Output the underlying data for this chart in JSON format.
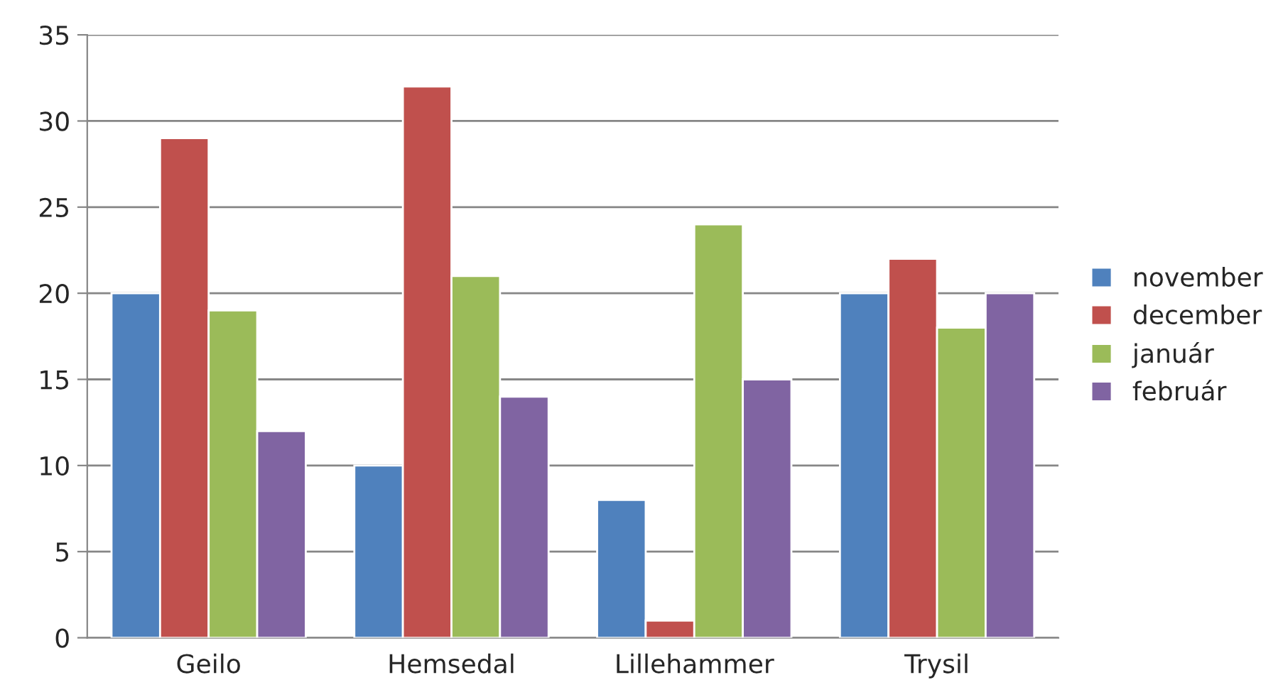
{
  "chart_data": {
    "type": "bar",
    "categories": [
      "Geilo",
      "Hemsedal",
      "Lillehammer",
      "Trysil"
    ],
    "series": [
      {
        "name": "november",
        "color": "#4f81bd",
        "values": [
          20,
          10,
          8,
          20
        ]
      },
      {
        "name": "december",
        "color": "#c0504d",
        "values": [
          29,
          32,
          1,
          22
        ]
      },
      {
        "name": "január",
        "color": "#9bbb59",
        "values": [
          19,
          21,
          24,
          18
        ]
      },
      {
        "name": "február",
        "color": "#8064a2",
        "values": [
          12,
          14,
          15,
          20
        ]
      }
    ],
    "ylim": [
      0,
      35
    ],
    "yticks": [
      0,
      5,
      10,
      15,
      20,
      25,
      30,
      35
    ],
    "grid": "y",
    "legend": "right"
  }
}
